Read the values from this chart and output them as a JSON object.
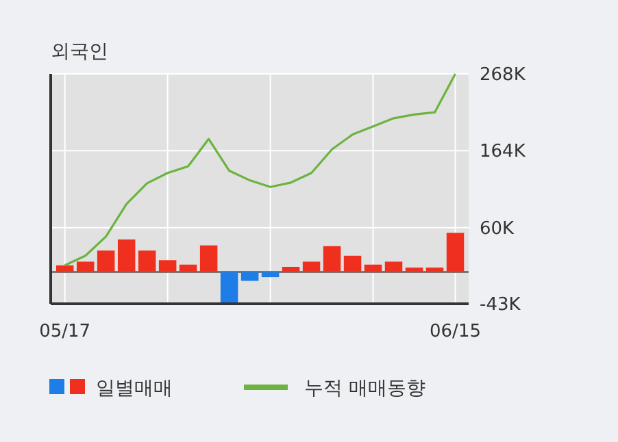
{
  "chart_data": {
    "type": "bar",
    "title": "외국인",
    "categories": [
      "05/17",
      null,
      null,
      null,
      null,
      null,
      null,
      null,
      null,
      null,
      null,
      null,
      null,
      null,
      null,
      null,
      null,
      null,
      null,
      "06/15"
    ],
    "series": [
      {
        "name": "일별매매",
        "colors": [
          "#f0301e",
          "#f0301e",
          "#f0301e",
          "#f0301e",
          "#f0301e",
          "#f0301e",
          "#f0301e",
          "#f0301e",
          "#1e7de6",
          "#1e7de6",
          "#1e7de6",
          "#f0301e",
          "#f0301e",
          "#f0301e",
          "#f0301e",
          "#f0301e",
          "#f0301e",
          "#f0301e",
          "#f0301e",
          "#f0301e"
        ],
        "values": [
          9,
          14,
          29,
          44,
          29,
          16,
          10,
          36,
          -43,
          -12,
          -7,
          7,
          14,
          35,
          22,
          10,
          14,
          6,
          6,
          53
        ]
      },
      {
        "name": "누적 매매동향",
        "type": "line",
        "color": "#6db33f",
        "values": [
          9,
          22,
          48,
          92,
          120,
          134,
          143,
          180,
          137,
          124,
          115,
          121,
          134,
          166,
          186,
          197,
          208,
          213,
          216,
          268
        ]
      }
    ],
    "ylim": [
      -43,
      268
    ],
    "yticks": [
      {
        "value": -43,
        "label": "-43K"
      },
      {
        "value": 60,
        "label": "60K"
      },
      {
        "value": 164,
        "label": "164K"
      },
      {
        "value": 268,
        "label": "268K"
      }
    ],
    "grid": true,
    "legend": "bottom",
    "marker": "none"
  }
}
